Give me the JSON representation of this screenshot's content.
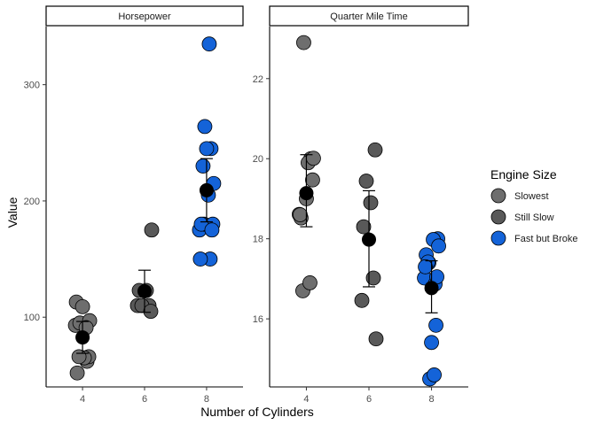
{
  "chart_data": {
    "type": "scatter",
    "xlabel": "Number of Cylinders",
    "ylabel": "Value",
    "categories": [
      "4",
      "6",
      "8"
    ],
    "grid": false,
    "legend": {
      "title": "Engine Size",
      "placement": "right",
      "entries": [
        {
          "name": "Slowest",
          "color": "#6e6e6e"
        },
        {
          "name": "Still Slow",
          "color": "#595959"
        },
        {
          "name": "Fast but Broke",
          "color": "#1463d8"
        }
      ]
    },
    "panels": [
      {
        "title": "Horsepower",
        "ylim": [
          40,
          350
        ],
        "yticks": [
          100,
          200,
          300
        ],
        "groups": [
          {
            "x": "4",
            "series": "Slowest",
            "values": [
              93,
              62,
              95,
              66,
              52,
              65,
              97,
              66,
              91,
              113,
              109
            ],
            "mean": 82.6,
            "error": [
              68.9,
              96.3
            ]
          },
          {
            "x": "6",
            "series": "Still Slow",
            "values": [
              110,
              110,
              110,
              105,
              123,
              123,
              175
            ],
            "mean": 122.3,
            "error": [
              104.2,
              140.4
            ]
          },
          {
            "x": "8",
            "series": "Fast but Broke",
            "values": [
              175,
              245,
              180,
              180,
              180,
              205,
              215,
              230,
              150,
              150,
              245,
              175,
              264,
              335
            ],
            "mean": 209.2,
            "error": [
              182.0,
              236.4
            ]
          }
        ]
      },
      {
        "title": "Quarter Mile Time",
        "ylim": [
          14.3,
          23.3
        ],
        "yticks": [
          16,
          18,
          20,
          22
        ],
        "groups": [
          {
            "x": "4",
            "series": "Slowest",
            "values": [
              18.61,
              20.0,
              22.9,
              19.47,
              18.52,
              19.9,
              20.01,
              16.7,
              16.9,
              18.6,
              19.0
            ],
            "mean": 19.14,
            "error": [
              18.3,
              20.1
            ]
          },
          {
            "x": "6",
            "series": "Still Slow",
            "values": [
              16.46,
              17.02,
              19.44,
              20.22,
              18.3,
              18.9,
              15.5
            ],
            "mean": 17.98,
            "error": [
              16.8,
              19.2
            ]
          },
          {
            "x": "8",
            "series": "Fast but Broke",
            "values": [
              17.02,
              15.84,
              17.4,
              18.0,
              17.6,
              17.98,
              17.82,
              17.42,
              16.87,
              17.3,
              15.41,
              17.05,
              14.5,
              14.6
            ],
            "mean": 16.77,
            "error": [
              16.15,
              17.45
            ]
          }
        ]
      }
    ]
  }
}
